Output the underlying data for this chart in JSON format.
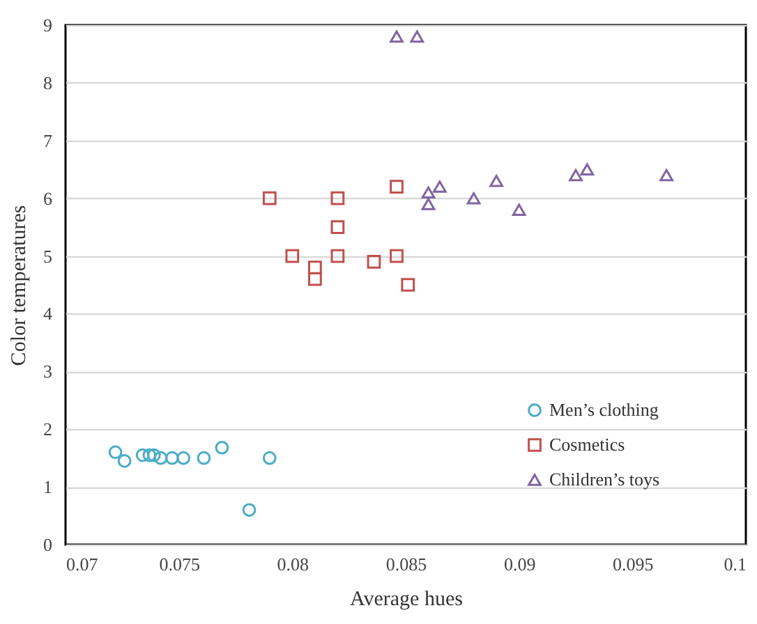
{
  "chart_data": {
    "type": "scatter",
    "xlabel": "Average hues",
    "ylabel": "Color temperatures",
    "xlim": [
      0.07,
      0.1
    ],
    "ylim": [
      0,
      9
    ],
    "xticks": [
      0.07,
      0.075,
      0.08,
      0.085,
      0.09,
      0.095,
      0.1
    ],
    "yticks": [
      0,
      1,
      2,
      3,
      4,
      5,
      6,
      7,
      8,
      9
    ],
    "grid": "y",
    "legend": "bottom right",
    "series": [
      {
        "name": "Men’s clothing",
        "color": "#4bacc6",
        "marker": "circle",
        "x": [
          0.0722,
          0.0726,
          0.0734,
          0.0737,
          0.0739,
          0.0742,
          0.0747,
          0.0752,
          0.0761,
          0.0769,
          0.0781,
          0.079
        ],
        "values": [
          1.6,
          1.45,
          1.55,
          1.55,
          1.55,
          1.5,
          1.5,
          1.5,
          1.5,
          1.68,
          0.6,
          1.5
        ]
      },
      {
        "name": "Cosmetics",
        "color": "#c0504d",
        "marker": "square",
        "x": [
          0.079,
          0.08,
          0.081,
          0.081,
          0.082,
          0.082,
          0.082,
          0.0836,
          0.0846,
          0.0846,
          0.0851
        ],
        "values": [
          6.0,
          5.0,
          4.8,
          4.6,
          6.0,
          5.5,
          5.0,
          4.9,
          6.2,
          5.0,
          4.5
        ]
      },
      {
        "name": "Children’s toys",
        "color": "#8064a2",
        "marker": "triangle",
        "x": [
          0.0846,
          0.0855,
          0.086,
          0.086,
          0.0865,
          0.088,
          0.089,
          0.09,
          0.0925,
          0.093,
          0.0965
        ],
        "values": [
          8.8,
          8.8,
          6.1,
          5.9,
          6.2,
          6.0,
          6.3,
          5.8,
          6.4,
          6.5,
          6.4
        ]
      }
    ]
  }
}
